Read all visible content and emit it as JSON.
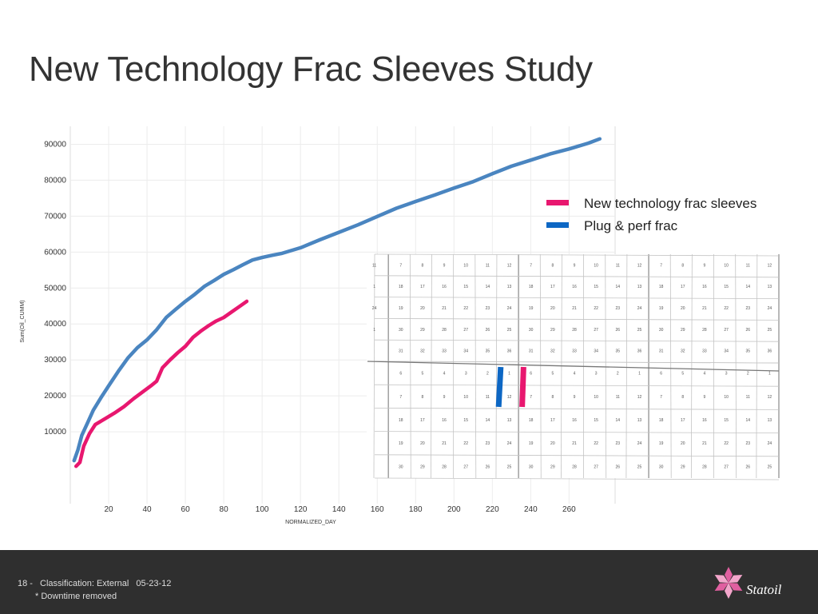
{
  "slide": {
    "title": "New Technology Frac Sleeves Study"
  },
  "chart_data": {
    "type": "line",
    "xlabel": "NORMALIZED_DAY",
    "ylabel": "Sum(Oil_CUMM)",
    "xlim": [
      0,
      284
    ],
    "ylim": [
      -10000,
      95000
    ],
    "xticks": [
      20,
      40,
      60,
      80,
      100,
      120,
      140,
      160,
      180,
      200,
      220,
      240,
      260
    ],
    "yticks": [
      10000,
      20000,
      30000,
      40000,
      50000,
      60000,
      70000,
      80000,
      90000
    ],
    "legend_position": "top-right",
    "grid": true,
    "series": [
      {
        "name": "New technology frac sleeves",
        "color": "#e8176f",
        "x": [
          3,
          5,
          7,
          10,
          13,
          18,
          23,
          28,
          33,
          38,
          42,
          45,
          48,
          52,
          56,
          60,
          64,
          68,
          72,
          76,
          80,
          84,
          88,
          92
        ],
        "y": [
          400,
          1500,
          6000,
          9500,
          12000,
          13600,
          15200,
          17000,
          19200,
          21200,
          22800,
          24100,
          27800,
          30000,
          32000,
          33800,
          36300,
          38000,
          39500,
          40800,
          41800,
          43300,
          44800,
          46300
        ]
      },
      {
        "name": "Plug & perf frac",
        "color": "#4a85c0",
        "x": [
          2,
          4,
          6,
          9,
          12,
          16,
          20,
          25,
          30,
          35,
          40,
          45,
          50,
          55,
          60,
          65,
          70,
          75,
          80,
          85,
          90,
          95,
          100,
          105,
          110,
          120,
          130,
          140,
          150,
          160,
          170,
          180,
          190,
          200,
          210,
          220,
          230,
          240,
          250,
          260,
          270,
          276
        ],
        "y": [
          2000,
          5000,
          9000,
          12500,
          16000,
          19500,
          22800,
          26800,
          30500,
          33400,
          35600,
          38400,
          41800,
          44100,
          46300,
          48300,
          50500,
          52100,
          53800,
          55100,
          56500,
          57800,
          58500,
          59100,
          59600,
          61200,
          63400,
          65500,
          67600,
          69900,
          72200,
          74100,
          75900,
          77800,
          79600,
          81800,
          83900,
          85600,
          87300,
          88700,
          90300,
          91500
        ]
      }
    ]
  },
  "legend": {
    "items": [
      {
        "label": "New technology frac sleeves",
        "color": "#e8176f"
      },
      {
        "label": "Plug & perf frac",
        "color": "#0d67c4"
      }
    ]
  },
  "grid_map": {
    "top_rows": [
      [
        "11",
        "7",
        "8",
        "9",
        "10",
        "11",
        "12",
        "7",
        "8",
        "9",
        "10",
        "11",
        "12",
        "7",
        "8",
        "9",
        "10",
        "11",
        "12"
      ],
      [
        "1",
        "18",
        "17",
        "16",
        "15",
        "14",
        "13",
        "18",
        "17",
        "16",
        "15",
        "14",
        "13",
        "18",
        "17",
        "16",
        "15",
        "14",
        "13"
      ],
      [
        "24",
        "19",
        "20",
        "21",
        "22",
        "23",
        "24",
        "19",
        "20",
        "21",
        "22",
        "23",
        "24",
        "19",
        "20",
        "21",
        "22",
        "23",
        "24"
      ],
      [
        "1",
        "30",
        "29",
        "28",
        "27",
        "26",
        "25",
        "30",
        "29",
        "28",
        "27",
        "26",
        "25",
        "30",
        "29",
        "28",
        "27",
        "26",
        "25"
      ],
      [
        "",
        "31",
        "32",
        "33",
        "34",
        "35",
        "36",
        "31",
        "32",
        "33",
        "34",
        "35",
        "36",
        "31",
        "32",
        "33",
        "34",
        "35",
        "36"
      ]
    ],
    "bottom_rows": [
      [
        "",
        "6",
        "5",
        "4",
        "3",
        "2",
        "1",
        "6",
        "5",
        "4",
        "3",
        "2",
        "1",
        "6",
        "5",
        "4",
        "3",
        "2",
        "1"
      ],
      [
        "",
        "7",
        "8",
        "9",
        "10",
        "11",
        "12",
        "7",
        "8",
        "9",
        "10",
        "11",
        "12",
        "7",
        "8",
        "9",
        "10",
        "11",
        "12"
      ],
      [
        "",
        "18",
        "17",
        "16",
        "15",
        "14",
        "13",
        "18",
        "17",
        "16",
        "15",
        "14",
        "13",
        "18",
        "17",
        "16",
        "15",
        "14",
        "13"
      ],
      [
        "",
        "19",
        "20",
        "21",
        "22",
        "23",
        "24",
        "19",
        "20",
        "21",
        "22",
        "23",
        "24",
        "19",
        "20",
        "21",
        "22",
        "23",
        "24"
      ],
      [
        "",
        "30",
        "29",
        "28",
        "27",
        "26",
        "25",
        "30",
        "29",
        "28",
        "27",
        "26",
        "25",
        "30",
        "29",
        "28",
        "27",
        "26",
        "25"
      ]
    ],
    "wells": [
      {
        "name": "plug-perf-well",
        "color": "#0d67c4"
      },
      {
        "name": "frac-sleeve-well",
        "color": "#e8176f"
      }
    ]
  },
  "footer": {
    "page": "18 -",
    "classification": "Classification: External",
    "date": "05-23-12",
    "note": "* Downtime removed",
    "logo_text": "Statoil",
    "logo_color": "#e05fa0"
  }
}
